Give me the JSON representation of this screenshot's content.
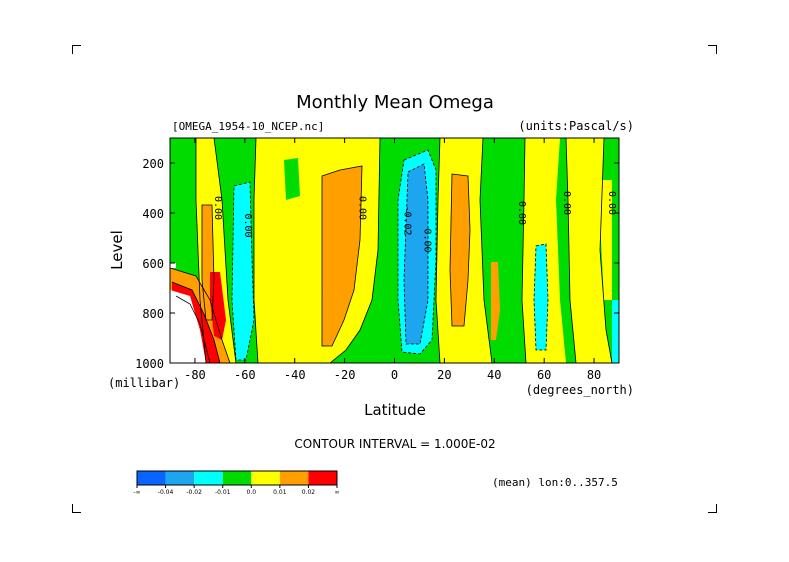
{
  "chart_data": {
    "type": "heatmap",
    "title": "Monthly Mean Omega",
    "dataset_label": "[OMEGA_1954-10_NCEP.nc]",
    "units_label": "(units:Pascal/s)",
    "xlabel": "Latitude",
    "x_unit_label": "(degrees_north)",
    "ylabel": "Level",
    "y_unit_label": "(millibar)",
    "xlim": [
      -90,
      90
    ],
    "ylim": [
      1000,
      100
    ],
    "y_reversed": true,
    "x_ticks": [
      -80,
      -60,
      -40,
      -20,
      0,
      20,
      40,
      60,
      80
    ],
    "x_tick_labels": [
      "-80",
      "-60",
      "-40",
      "-20",
      "0",
      "20",
      "40",
      "60",
      "80"
    ],
    "y_ticks": [
      200,
      400,
      600,
      800,
      1000
    ],
    "y_tick_labels": [
      "200",
      "400",
      "600",
      "800",
      "1000"
    ],
    "contour_interval_text": "CONTOUR INTERVAL = 1.000E-02",
    "mean_text": "(mean) lon:0..357.5",
    "contour_labels": [
      {
        "text": "0.00",
        "lat": -72,
        "level": 380
      },
      {
        "text": "0.00",
        "lat": -60,
        "level": 450
      },
      {
        "text": "0.00",
        "lat": -14,
        "level": 380
      },
      {
        "text": "-0.02",
        "lat": 4,
        "level": 430
      },
      {
        "text": "0.00",
        "lat": 12,
        "level": 510
      },
      {
        "text": "0.00",
        "lat": 50,
        "level": 400
      },
      {
        "text": "0.00",
        "lat": 68,
        "level": 360
      },
      {
        "text": "0.00",
        "lat": 86,
        "level": 360
      }
    ],
    "color_scale": {
      "bins": [
        {
          "label": "-∞",
          "color": "#0a64ff"
        },
        {
          "label": "-0.04",
          "color": "#1ea5f0"
        },
        {
          "label": "-0.02",
          "color": "#00ffff"
        },
        {
          "label": "-0.01",
          "color": "#00dc00"
        },
        {
          "label": "0.0",
          "color": "#ffff00"
        },
        {
          "label": "0.01",
          "color": "#ffa000"
        },
        {
          "label": "0.02",
          "color": "#ff0000"
        },
        {
          "label": "∞",
          "color": "#ff0000"
        }
      ]
    },
    "regions_by_latitude_band": [
      {
        "lat_from": -90,
        "lat_to": -83,
        "value_class": "-0.01",
        "note": "green"
      },
      {
        "lat_from": -83,
        "lat_to": -66,
        "value_class": "0.0",
        "note": "yellow with orange core -76..-71"
      },
      {
        "lat_from": -66,
        "lat_to": -56,
        "value_class": "-0.02",
        "note": "cyan"
      },
      {
        "lat_from": -56,
        "lat_to": -40,
        "value_class": "0.0",
        "note": "yellow"
      },
      {
        "lat_from": -40,
        "lat_to": -5,
        "value_class": "0.01",
        "note": "orange core -34..-16"
      },
      {
        "lat_from": -5,
        "lat_to": 0,
        "value_class": "-0.01",
        "note": "green"
      },
      {
        "lat_from": 0,
        "lat_to": 12,
        "value_class": "-0.04",
        "note": "blue core"
      },
      {
        "lat_from": 12,
        "lat_to": 40,
        "value_class": "0.0",
        "note": "yellow with orange core 22..28"
      },
      {
        "lat_from": 40,
        "lat_to": 56,
        "value_class": "-0.01",
        "note": "green"
      },
      {
        "lat_from": 56,
        "lat_to": 63,
        "value_class": "-0.02",
        "note": "cyan"
      },
      {
        "lat_from": 63,
        "lat_to": 90,
        "value_class": "0.0",
        "note": "yellow/green"
      }
    ]
  }
}
